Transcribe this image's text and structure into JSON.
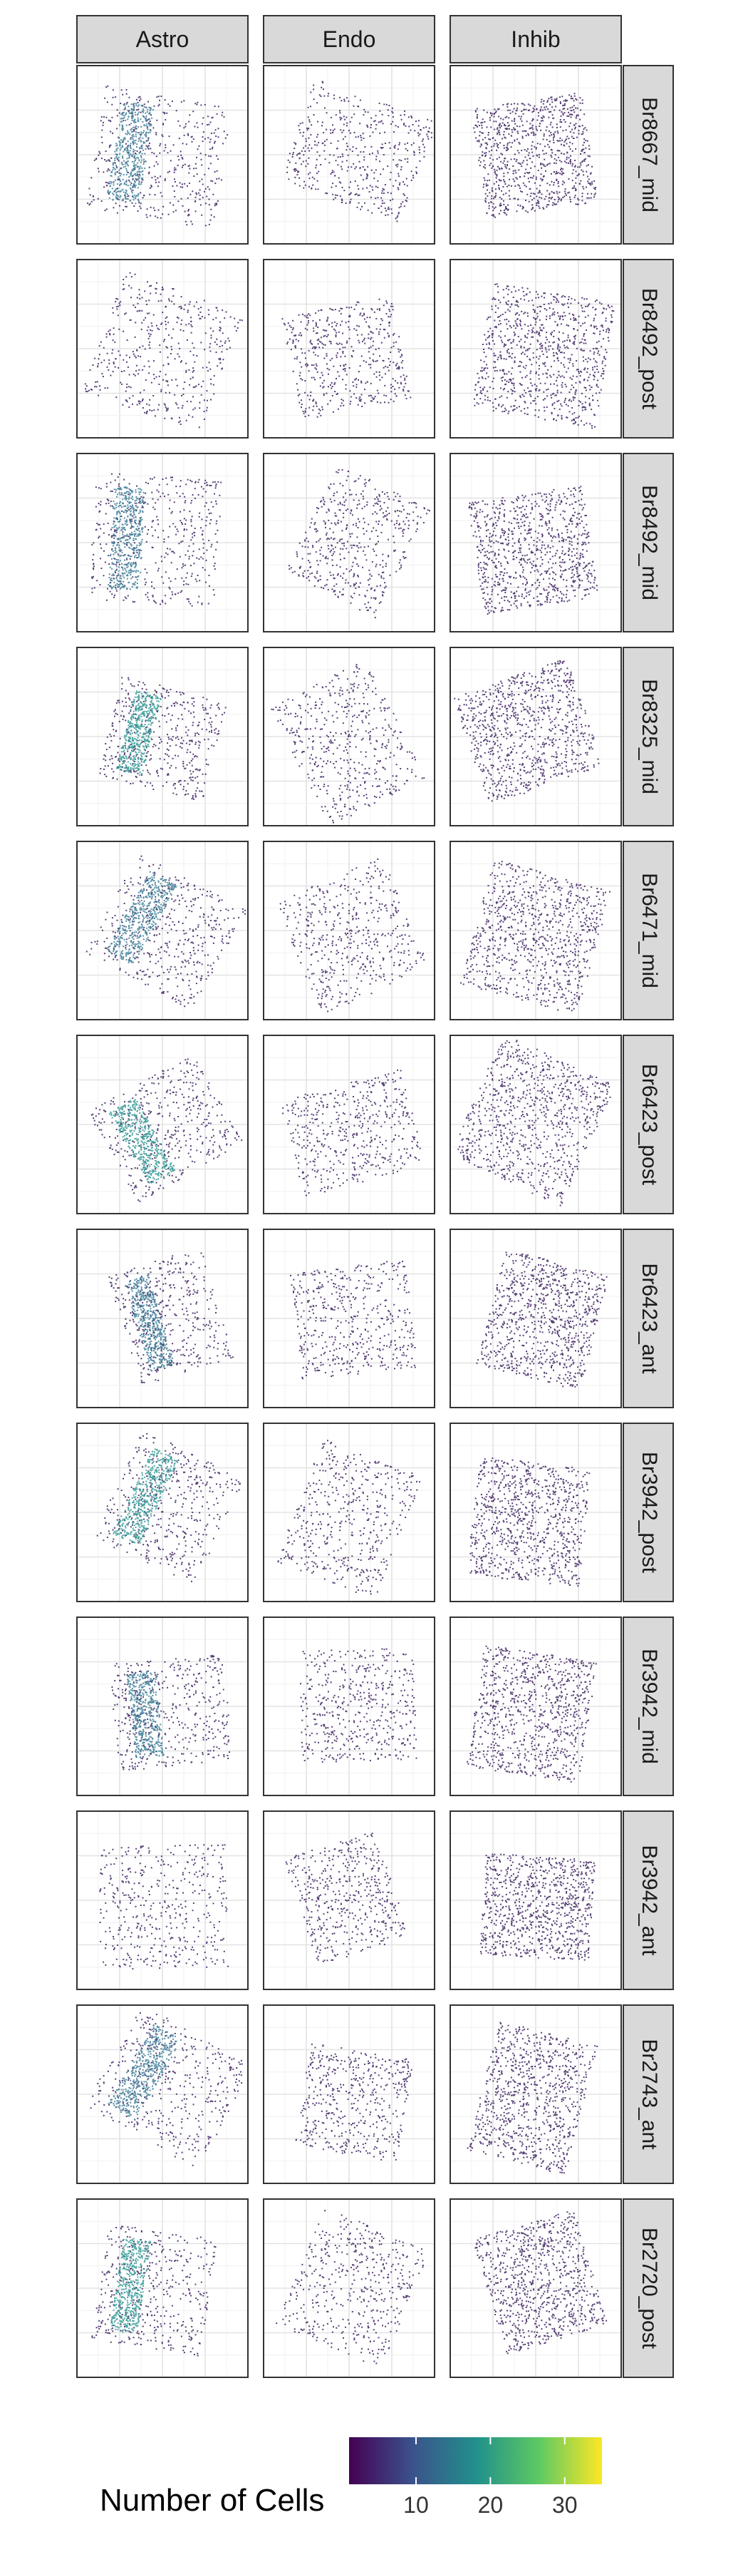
{
  "chart_data": {
    "type": "heatmap",
    "columns": [
      "Astro",
      "Endo",
      "Inhib"
    ],
    "rows": [
      "Br8667_mid",
      "Br8492_post",
      "Br8492_mid",
      "Br8325_mid",
      "Br6471_mid",
      "Br6423_post",
      "Br6423_ant",
      "Br3942_post",
      "Br3942_mid",
      "Br3942_ant",
      "Br2743_ant",
      "Br2720_post"
    ],
    "legend": {
      "title": "Number of Cells",
      "ticks": [
        "10",
        "20",
        "30"
      ],
      "tick_values": [
        10,
        20,
        30
      ],
      "range": [
        1,
        35
      ],
      "palette": "viridis",
      "colors": [
        "#440154",
        "#3b528b",
        "#21908c",
        "#5dc963",
        "#fde725"
      ]
    },
    "grid": true,
    "legend_position": "bottom"
  }
}
